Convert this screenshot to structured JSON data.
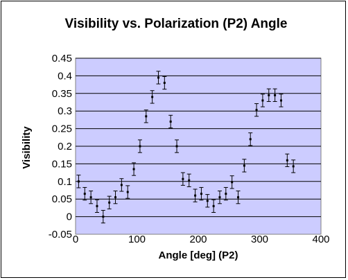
{
  "chart_data": {
    "type": "scatter",
    "title": "Visibility vs. Polarization (P2) Angle",
    "xlabel": "Angle [deg] (P2)",
    "ylabel": "Visibility",
    "xlim": [
      0,
      400
    ],
    "ylim": [
      -0.05,
      0.45
    ],
    "xticks": [
      0,
      100,
      200,
      300,
      400
    ],
    "yticks": [
      -0.05,
      0,
      0.05,
      0.1,
      0.15,
      0.2,
      0.25,
      0.3,
      0.35,
      0.4,
      0.45
    ],
    "grid": "horizontal",
    "plot_background": "#ccccff",
    "marker_color": "#000000",
    "error_bar": 0.018,
    "series": [
      {
        "x": [
          5,
          15,
          25,
          35,
          45,
          55,
          65,
          75,
          85,
          95,
          105,
          115,
          125,
          135,
          145,
          155,
          165,
          175,
          185,
          195,
          205,
          215,
          225,
          235,
          245,
          255,
          265,
          275,
          285,
          295,
          305,
          315,
          325,
          335,
          345,
          355
        ],
        "y": [
          0.1,
          0.065,
          0.055,
          0.03,
          0.0,
          0.04,
          0.055,
          0.09,
          0.07,
          0.135,
          0.2,
          0.285,
          0.34,
          0.395,
          0.38,
          0.27,
          0.2,
          0.107,
          0.103,
          0.06,
          0.065,
          0.045,
          0.03,
          0.055,
          0.065,
          0.098,
          0.055,
          0.145,
          0.22,
          0.303,
          0.33,
          0.345,
          0.345,
          0.33,
          0.16,
          0.143
        ]
      }
    ]
  }
}
